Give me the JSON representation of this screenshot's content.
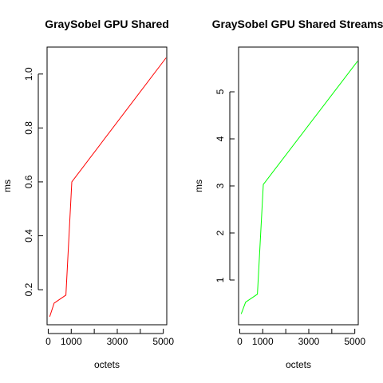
{
  "chart_data": [
    {
      "type": "line",
      "title": "GraySobel GPU Shared",
      "xlabel": "octets",
      "ylabel": "ms",
      "xlim": [
        -50,
        5150
      ],
      "ylim": [
        0.07,
        1.1
      ],
      "xticks": [
        0,
        1000,
        2000,
        3000,
        4000,
        5000
      ],
      "xtick_labels": [
        "0",
        "1000",
        "",
        "3000",
        "",
        "5000"
      ],
      "yticks": [
        0.2,
        0.4,
        0.6,
        0.8,
        1.0
      ],
      "ytick_labels": [
        "0.2",
        "0.4",
        "0.6",
        "0.8",
        "1.0"
      ],
      "grid": false,
      "series": [
        {
          "color": "#ff0000",
          "x": [
            64,
            256,
            768,
            1024,
            5120
          ],
          "y": [
            0.1,
            0.15,
            0.18,
            0.6,
            1.06
          ]
        }
      ]
    },
    {
      "type": "line",
      "title": "GraySobel GPU Shared Streams",
      "xlabel": "octets",
      "ylabel": "ms",
      "xlim": [
        -50,
        5150
      ],
      "ylim": [
        0.05,
        5.95
      ],
      "xticks": [
        0,
        1000,
        2000,
        3000,
        4000,
        5000
      ],
      "xtick_labels": [
        "0",
        "1000",
        "",
        "3000",
        "",
        "5000"
      ],
      "yticks": [
        1,
        2,
        3,
        4,
        5
      ],
      "ytick_labels": [
        "1",
        "2",
        "3",
        "4",
        "5"
      ],
      "grid": false,
      "series": [
        {
          "color": "#00ff00",
          "x": [
            64,
            256,
            768,
            1024,
            5120
          ],
          "y": [
            0.28,
            0.53,
            0.7,
            3.03,
            5.65
          ]
        }
      ]
    }
  ]
}
